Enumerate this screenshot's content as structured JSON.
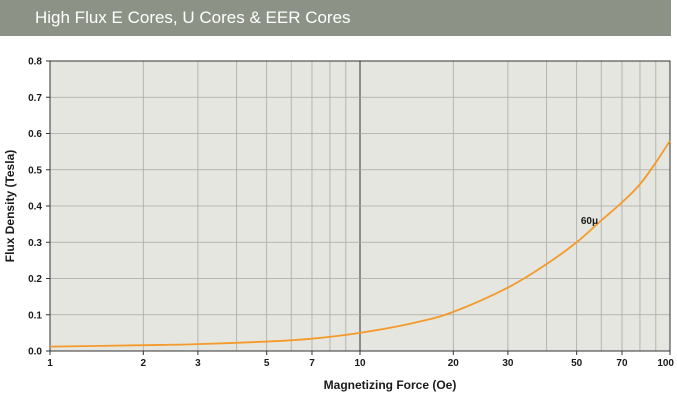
{
  "header": {
    "title": "High Flux E Cores, U Cores & EER Cores",
    "background": "#8c9386"
  },
  "chart_data": {
    "type": "line",
    "xlabel": "Magnetizing Force (Oe)",
    "ylabel": "Flux Density (Tesla)",
    "x_scale": "log",
    "xlim": [
      1,
      100
    ],
    "ylim": [
      0,
      0.8
    ],
    "x_ticks": [
      1,
      2,
      3,
      5,
      7,
      10,
      20,
      30,
      50,
      70,
      100
    ],
    "x_tick_labels": [
      "1",
      "2",
      "3",
      "5",
      "7",
      "10",
      "20",
      "30",
      "50",
      "70",
      "100"
    ],
    "y_ticks": [
      0,
      0.1,
      0.2,
      0.3,
      0.4,
      0.5,
      0.6,
      0.7,
      0.8
    ],
    "y_tick_labels": [
      "0.0",
      "0.1",
      "0.2",
      "0.3",
      "0.4",
      "0.5",
      "0.6",
      "0.7",
      "0.8"
    ],
    "grid": true,
    "plot_background": "#e6e6e1",
    "series": [
      {
        "name": "60μ",
        "color": "#f39a2b",
        "x": [
          1,
          2,
          3,
          5,
          7,
          10,
          15,
          20,
          30,
          40,
          50,
          60,
          70,
          80,
          90,
          100
        ],
        "y": [
          0.012,
          0.016,
          0.019,
          0.026,
          0.034,
          0.05,
          0.078,
          0.108,
          0.175,
          0.24,
          0.3,
          0.36,
          0.41,
          0.46,
          0.52,
          0.58
        ]
      }
    ],
    "annotations": [
      {
        "text": "60μ",
        "x": 55,
        "y": 0.35
      }
    ]
  }
}
